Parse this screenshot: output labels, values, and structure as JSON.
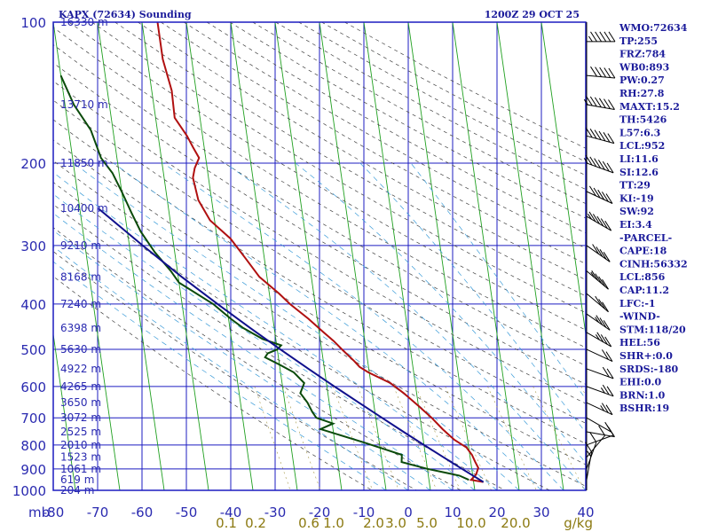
{
  "header": {
    "station": "KAPX (72634) Sounding",
    "time": "1200Z 29 OCT 25"
  },
  "chart_data": {
    "type": "line",
    "title": "KAPX (72634) Sounding",
    "xlabel": "",
    "ylabel": "mb",
    "pressure_axis": "log",
    "pressure_ticks": [
      100,
      200,
      300,
      400,
      500,
      600,
      700,
      800,
      900,
      1000
    ],
    "pressure_labels": [
      "100",
      "200",
      "300",
      "400",
      "500",
      "600",
      "700",
      "800",
      "900",
      "1000"
    ],
    "temp_ticks": [
      -80,
      -70,
      -60,
      -50,
      -40,
      -30,
      -20,
      -10,
      0,
      10,
      20,
      30,
      40
    ],
    "temp_labels": [
      "-80",
      "-70",
      "-60",
      "-50",
      "-40",
      "-30",
      "-20",
      "-10",
      "0",
      "10",
      "20",
      "30",
      "40"
    ],
    "mb_label": "mb",
    "mixing_ratio_labels": [
      "0.1",
      "0.2",
      "0.6",
      "1.0",
      "2.0",
      "3.0",
      "5.0",
      "10.0",
      "20.0"
    ],
    "gkg_label": "g/kg",
    "heights": [
      {
        "p": 100,
        "label": "16330 m"
      },
      {
        "p": 150,
        "label": "13710 m"
      },
      {
        "p": 200,
        "label": "11850 m"
      },
      {
        "p": 250,
        "label": "10400 m"
      },
      {
        "p": 300,
        "label": "9210 m"
      },
      {
        "p": 350,
        "label": "8168 m"
      },
      {
        "p": 400,
        "label": "7240 m"
      },
      {
        "p": 450,
        "label": "6398 m"
      },
      {
        "p": 500,
        "label": "5630 m"
      },
      {
        "p": 550,
        "label": "4922 m"
      },
      {
        "p": 600,
        "label": "4265 m"
      },
      {
        "p": 650,
        "label": "3650 m"
      },
      {
        "p": 700,
        "label": "3072 m"
      },
      {
        "p": 750,
        "label": "2525 m"
      },
      {
        "p": 800,
        "label": "2010 m"
      },
      {
        "p": 850,
        "label": "1523 m"
      },
      {
        "p": 900,
        "label": "1061 m"
      },
      {
        "p": 950,
        "label": "619 m"
      },
      {
        "p": 1000,
        "label": "204 m"
      }
    ],
    "series": [
      {
        "name": "",
        "color": "#b01010",
        "points": [
          [
            100,
            -56.5
          ],
          [
            120,
            -56.5
          ],
          [
            140,
            -55.5
          ],
          [
            160,
            -55.7
          ],
          [
            175,
            -53.5
          ],
          [
            185,
            -52.5
          ],
          [
            195,
            -51.5
          ],
          [
            205,
            -52.8
          ],
          [
            215,
            -53.5
          ],
          [
            240,
            -53.0
          ],
          [
            265,
            -51.0
          ],
          [
            290,
            -47.0
          ],
          [
            320,
            -44.2
          ],
          [
            350,
            -41.7
          ],
          [
            380,
            -37.8
          ],
          [
            400,
            -35.7
          ],
          [
            430,
            -32.0
          ],
          [
            460,
            -29.0
          ],
          [
            480,
            -27.0
          ],
          [
            500,
            -25.4
          ],
          [
            530,
            -23.0
          ],
          [
            545,
            -22.0
          ],
          [
            560,
            -20.2
          ],
          [
            590,
            -15.6
          ],
          [
            620,
            -12.9
          ],
          [
            660,
            -10.0
          ],
          [
            700,
            -7.4
          ],
          [
            740,
            -5.3
          ],
          [
            780,
            -3.0
          ],
          [
            810,
            -0.5
          ],
          [
            840,
            0.5
          ],
          [
            870,
            1.0
          ],
          [
            895,
            1.5
          ],
          [
            925,
            0.8
          ],
          [
            950,
            -0.5
          ],
          [
            960,
            2.2
          ]
        ]
      },
      {
        "name": "",
        "color": "#0a4a0a",
        "points": [
          [
            130,
            -80.0
          ],
          [
            150,
            -78.0
          ],
          [
            170,
            -75.0
          ],
          [
            180,
            -74.4
          ],
          [
            195,
            -73.6
          ],
          [
            210,
            -71.5
          ],
          [
            230,
            -70.0
          ],
          [
            255,
            -68.5
          ],
          [
            280,
            -67.0
          ],
          [
            310,
            -64.5
          ],
          [
            340,
            -61.5
          ],
          [
            360,
            -60.0
          ],
          [
            400,
            -53.0
          ],
          [
            430,
            -49.5
          ],
          [
            450,
            -47.0
          ],
          [
            475,
            -43.0
          ],
          [
            490,
            -39.0
          ],
          [
            500,
            -40.0
          ],
          [
            510,
            -42.3
          ],
          [
            520,
            -43.0
          ],
          [
            540,
            -39.8
          ],
          [
            560,
            -37.0
          ],
          [
            590,
            -35.0
          ],
          [
            620,
            -36.2
          ],
          [
            650,
            -34.9
          ],
          [
            680,
            -34.1
          ],
          [
            700,
            -33.4
          ],
          [
            720,
            -29.8
          ],
          [
            740,
            -32.8
          ],
          [
            790,
            -23.5
          ],
          [
            840,
            -15.3
          ],
          [
            870,
            -15.6
          ],
          [
            900,
            -10.0
          ],
          [
            930,
            -3.0
          ],
          [
            950,
            -1.0
          ]
        ]
      },
      {
        "name": "",
        "color": "#10108c",
        "points": [
          [
            250,
            -75.8
          ],
          [
            300,
            -67.0
          ],
          [
            350,
            -59.2
          ],
          [
            400,
            -52.0
          ],
          [
            450,
            -45.4
          ],
          [
            500,
            -39.3
          ],
          [
            550,
            -33.6
          ],
          [
            600,
            -28.3
          ],
          [
            650,
            -23.3
          ],
          [
            700,
            -18.6
          ],
          [
            750,
            -14.2
          ],
          [
            800,
            -10.0
          ],
          [
            850,
            -6.0
          ],
          [
            900,
            -2.2
          ],
          [
            960,
            2.2
          ]
        ]
      }
    ],
    "wind_barbs": [
      {
        "p": 110,
        "dir": 270,
        "spd": 45
      },
      {
        "p": 130,
        "dir": 275,
        "spd": 50
      },
      {
        "p": 150,
        "dir": 280,
        "spd": 55
      },
      {
        "p": 175,
        "dir": 285,
        "spd": 60
      },
      {
        "p": 200,
        "dir": 290,
        "spd": 55
      },
      {
        "p": 230,
        "dir": 295,
        "spd": 50
      },
      {
        "p": 260,
        "dir": 300,
        "spd": 45
      },
      {
        "p": 300,
        "dir": 305,
        "spd": 40
      },
      {
        "p": 340,
        "dir": 310,
        "spd": 35
      },
      {
        "p": 380,
        "dir": 310,
        "spd": 30
      },
      {
        "p": 420,
        "dir": 305,
        "spd": 25
      },
      {
        "p": 460,
        "dir": 300,
        "spd": 25
      },
      {
        "p": 500,
        "dir": 295,
        "spd": 20
      },
      {
        "p": 550,
        "dir": 290,
        "spd": 20
      },
      {
        "p": 600,
        "dir": 290,
        "spd": 15
      },
      {
        "p": 650,
        "dir": 295,
        "spd": 15
      },
      {
        "p": 700,
        "dir": 300,
        "spd": 10
      },
      {
        "p": 750,
        "dir": 280,
        "spd": 10
      },
      {
        "p": 800,
        "dir": 250,
        "spd": 10
      },
      {
        "p": 850,
        "dir": 220,
        "spd": 10
      },
      {
        "p": 900,
        "dir": 200,
        "spd": 10
      },
      {
        "p": 950,
        "dir": 190,
        "spd": 5
      }
    ]
  },
  "indices": [
    "WMO:72634",
    "TP:255",
    "FRZ:784",
    "WB0:893",
    "PW:0.27",
    "RH:27.8",
    "MAXT:15.2",
    "TH:5426",
    "L57:6.3",
    "LCL:952",
    "LI:11.6",
    "SI:12.6",
    "TT:29",
    "KI:-19",
    "SW:92",
    "EI:3.4",
    "-PARCEL-",
    "CAPE:18",
    "CINH:56332",
    "LCL:856",
    "CAP:11.2",
    "LFC:-1",
    "-WIND-",
    "STM:118/20",
    "HEL:56",
    "SHR+:0.0",
    "SRDS:-180",
    "EHI:0.0",
    "BRN:1.0",
    "BSHR:19"
  ],
  "colors": {
    "grid": "#1c1cc0",
    "isotherm": "#20a020",
    "dry_adiabat": "#404040",
    "moist_adiabat": "#3a9bd8",
    "temperature": "#b01010",
    "dewpoint": "#0a4a0a",
    "parcel": "#10108c"
  }
}
